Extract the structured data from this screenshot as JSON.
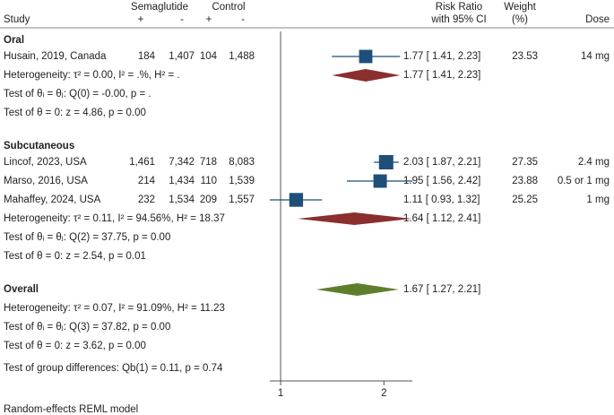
{
  "chart_data": {
    "type": "forest",
    "headers": {
      "study": "Study",
      "treatment": "Semaglutide",
      "treatment_pos": "+",
      "treatment_neg": "-",
      "control": "Control",
      "control_pos": "+",
      "control_neg": "-",
      "effect": "Risk Ratio",
      "effect_sub": "with 95% CI",
      "weight": "Weight",
      "weight_sub": "(%)",
      "dose": "Dose"
    },
    "groups": [
      {
        "name": "Oral",
        "studies": [
          {
            "name": "Husain, 2019, Canada",
            "treatment_pos": "184",
            "treatment_neg": "1,407",
            "control_pos": "104",
            "control_neg": "1,488",
            "rr": 1.77,
            "lo": 1.41,
            "hi": 2.23,
            "ci_label": "1.77 [ 1.41, 2.23]",
            "weight": 23.53,
            "dose": "14 mg"
          }
        ],
        "summary": {
          "rr": 1.77,
          "lo": 1.41,
          "hi": 2.23,
          "ci_label": "1.77 [ 1.41, 2.23]"
        },
        "heterogeneity": "Heterogeneity: τ² = 0.00, I² = .%, H² = .",
        "test_homogeneity": "Test of θᵢ = θⱼ: Q(0) = -0.00, p = .",
        "test_effect": "Test of θ = 0: z = 4.86, p = 0.00"
      },
      {
        "name": "Subcutaneous",
        "studies": [
          {
            "name": "Lincof, 2023, USA",
            "treatment_pos": "1,461",
            "treatment_neg": "7,342",
            "control_pos": "718",
            "control_neg": "8,083",
            "rr": 2.03,
            "lo": 1.87,
            "hi": 2.21,
            "ci_label": "2.03 [ 1.87, 2.21]",
            "weight": 27.35,
            "dose": "2.4 mg"
          },
          {
            "name": "Marso, 2016, USA",
            "treatment_pos": "214",
            "treatment_neg": "1,434",
            "control_pos": "110",
            "control_neg": "1,539",
            "rr": 1.95,
            "lo": 1.56,
            "hi": 2.42,
            "ci_label": "1.95 [ 1.56, 2.42]",
            "weight": 23.88,
            "dose": "0.5 or 1 mg"
          },
          {
            "name": "Mahaffey, 2024, USA",
            "treatment_pos": "232",
            "treatment_neg": "1,534",
            "control_pos": "209",
            "control_neg": "1,557",
            "rr": 1.11,
            "lo": 0.93,
            "hi": 1.32,
            "ci_label": "1.11 [ 0.93, 1.32]",
            "weight": 25.25,
            "dose": "1 mg"
          }
        ],
        "summary": {
          "rr": 1.64,
          "lo": 1.12,
          "hi": 2.41,
          "ci_label": "1.64 [ 1.12, 2.41]"
        },
        "heterogeneity": "Heterogeneity: τ² = 0.11, I² = 94.56%, H² = 18.37",
        "test_homogeneity": "Test of θᵢ = θⱼ: Q(2) = 37.75, p = 0.00",
        "test_effect": "Test of θ = 0: z = 2.54, p = 0.01"
      }
    ],
    "overall": {
      "name": "Overall",
      "rr": 1.67,
      "lo": 1.27,
      "hi": 2.21,
      "ci_label": "1.67 [ 1.27, 2.21]",
      "heterogeneity": "Heterogeneity: τ² = 0.07, I² = 91.09%, H² = 11.23",
      "test_homogeneity": "Test of θᵢ = θⱼ: Q(3) = 37.82, p = 0.00",
      "test_effect": "Test of θ = 0: z = 3.62, p = 0.00",
      "group_difference": "Test of group differences: Qb(1) = 0.11, p = 0.74"
    },
    "footnote": "Random-effects REML model",
    "xlim": [
      0.93,
      2.42
    ],
    "xticks": [
      1,
      2
    ],
    "log_x": true,
    "square_color": "#1f4e79",
    "group_diamond_color": "#8b2e2e",
    "overall_diamond_color": "#5d7f2b"
  }
}
